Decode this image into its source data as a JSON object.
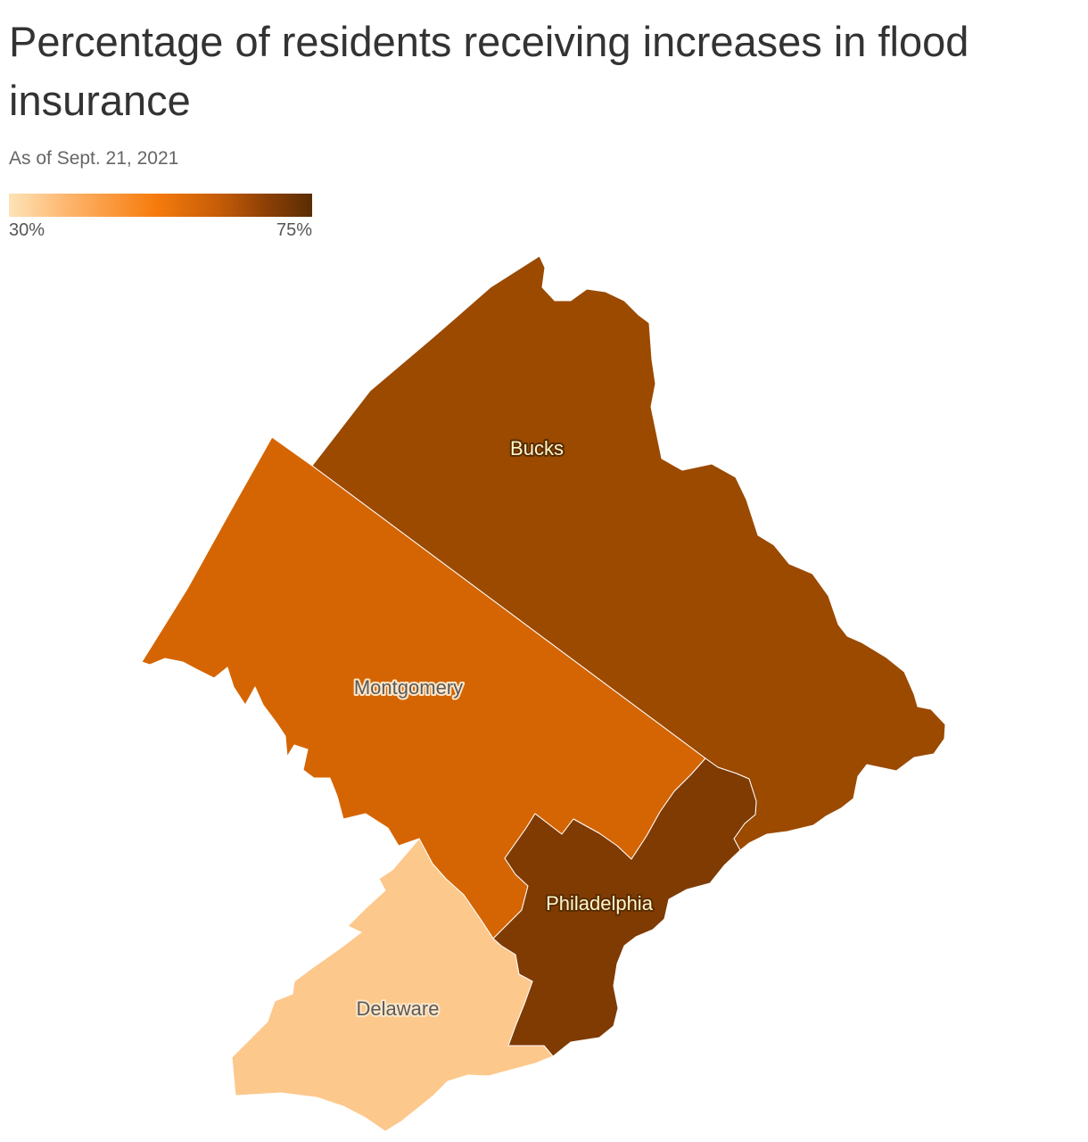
{
  "title": "Percentage of residents receiving increases in flood insurance",
  "subtitle": "As of Sept. 21, 2021",
  "legend": {
    "min_label": "30%",
    "max_label": "75%",
    "min_value": 30,
    "max_value": 75,
    "colors": [
      "#fde3b8",
      "#fdb46b",
      "#f77c0d",
      "#c35b08",
      "#8c3f05",
      "#5a2d04"
    ]
  },
  "regions": [
    {
      "name": "Bucks",
      "color": "#9b4a00"
    },
    {
      "name": "Montgomery",
      "color": "#d56502"
    },
    {
      "name": "Philadelphia",
      "color": "#7f3b02"
    },
    {
      "name": "Delaware",
      "color": "#fdc88c"
    }
  ]
}
